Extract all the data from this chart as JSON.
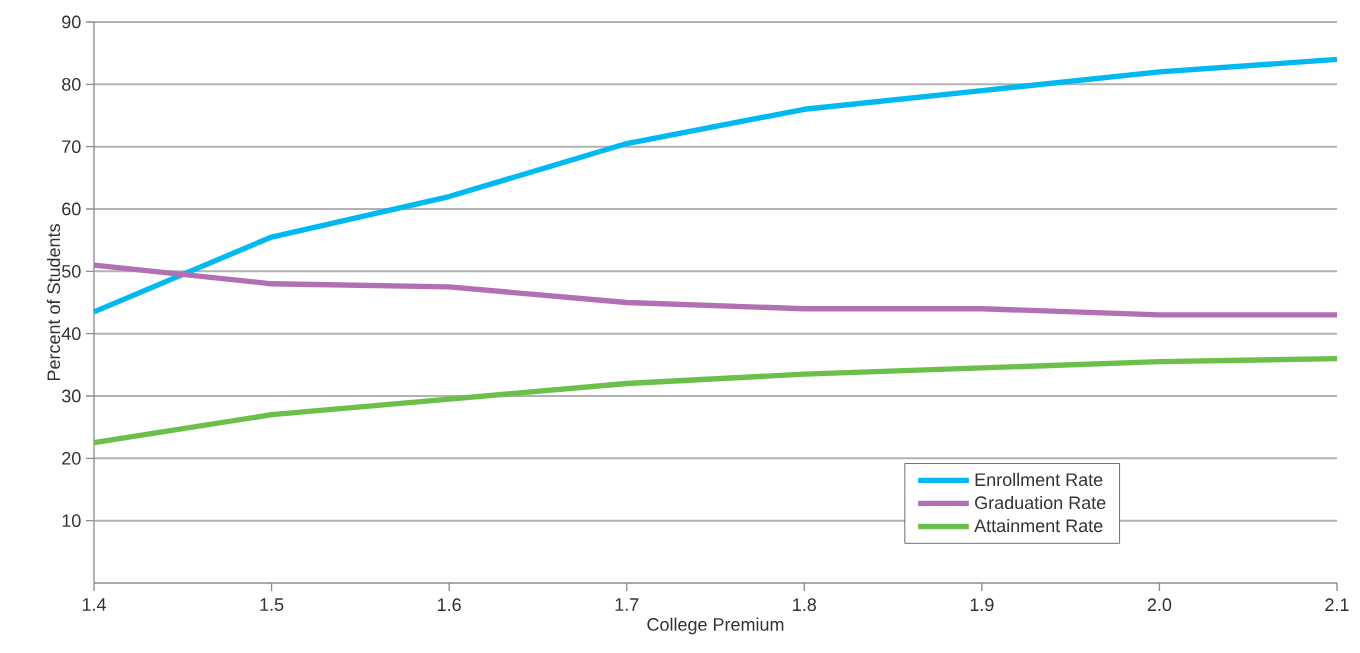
{
  "chart_data": {
    "type": "line",
    "xlabel": "College Premium",
    "ylabel": "Percent of Students",
    "x": [
      1.4,
      1.5,
      1.6,
      1.7,
      1.8,
      1.9,
      2.0,
      2.1
    ],
    "series": [
      {
        "name": "Enrollment Rate",
        "color": "#00b9f1",
        "values": [
          43.5,
          55.5,
          62,
          70.5,
          76,
          79,
          82,
          84
        ]
      },
      {
        "name": "Graduation Rate",
        "color": "#b36fb3",
        "values": [
          51,
          48,
          47.5,
          45,
          44,
          44,
          43,
          43
        ]
      },
      {
        "name": "Attainment Rate",
        "color": "#6cc04a",
        "values": [
          22.5,
          27,
          29.5,
          32,
          33.5,
          34.5,
          35.5,
          36
        ]
      }
    ],
    "xlim": [
      1.4,
      2.1
    ],
    "xticks": [
      1.4,
      1.5,
      1.6,
      1.7,
      1.8,
      1.9,
      {
        "value": 2,
        "label": "2.0"
      },
      2.1
    ],
    "ylim": [
      0,
      90
    ],
    "yticks": [
      10,
      20,
      30,
      40,
      50,
      60,
      70,
      80,
      90
    ],
    "grid": "y",
    "legend": "bottom right",
    "marker": "none",
    "line_style": "solid"
  }
}
